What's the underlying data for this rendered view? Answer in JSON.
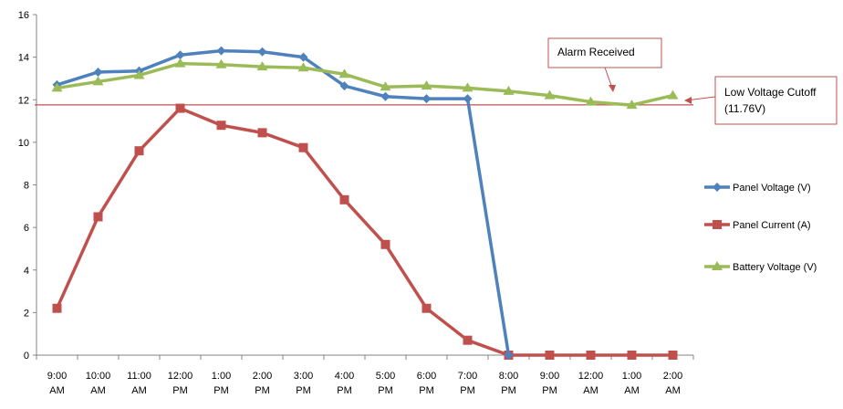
{
  "chart_data": {
    "type": "line",
    "categories": [
      "9:00 AM",
      "10:00 AM",
      "11:00 AM",
      "12:00 PM",
      "1:00 PM",
      "2:00 PM",
      "3:00 PM",
      "4:00 PM",
      "5:00 PM",
      "6:00 PM",
      "7:00 PM",
      "8:00 PM",
      "9:00 PM",
      "12:00 AM",
      "1:00 AM",
      "2:00 AM"
    ],
    "category_lines": [
      [
        "9:00",
        "AM"
      ],
      [
        "10:00",
        "AM"
      ],
      [
        "11:00",
        "AM"
      ],
      [
        "12:00",
        "PM"
      ],
      [
        "1:00",
        "PM"
      ],
      [
        "2:00",
        "PM"
      ],
      [
        "3:00",
        "PM"
      ],
      [
        "4:00",
        "PM"
      ],
      [
        "5:00",
        "PM"
      ],
      [
        "6:00",
        "PM"
      ],
      [
        "7:00",
        "PM"
      ],
      [
        "8:00",
        "PM"
      ],
      [
        "9:00",
        "PM"
      ],
      [
        "12:00",
        "AM"
      ],
      [
        "1:00",
        "AM"
      ],
      [
        "2:00",
        "AM"
      ]
    ],
    "ylim": [
      0,
      16
    ],
    "yticks": [
      0,
      2,
      4,
      6,
      8,
      10,
      12,
      14,
      16
    ],
    "grid": false,
    "legend_position": "right",
    "series": [
      {
        "name": "Panel Voltage  (V)",
        "color": "#4f81bd",
        "marker": "diamond",
        "values": [
          12.7,
          13.3,
          13.35,
          14.1,
          14.3,
          14.25,
          14.0,
          12.65,
          12.15,
          12.05,
          12.05,
          0,
          null,
          null,
          null,
          null
        ]
      },
      {
        "name": "Panel Current (A)",
        "color": "#c0504d",
        "marker": "square",
        "values": [
          2.2,
          6.5,
          9.6,
          11.6,
          10.8,
          10.45,
          9.75,
          7.3,
          5.2,
          2.2,
          0.7,
          0,
          0,
          0,
          0,
          0
        ]
      },
      {
        "name": "Battery Voltage  (V)",
        "color": "#9bbb59",
        "marker": "triangle",
        "values": [
          12.55,
          12.85,
          13.15,
          13.7,
          13.65,
          13.55,
          13.5,
          13.2,
          12.6,
          12.65,
          12.55,
          12.4,
          12.2,
          11.9,
          11.75,
          12.2
        ]
      }
    ],
    "reference_line": {
      "value": 11.76,
      "color": "#c0504d"
    },
    "annotations": {
      "alarm": "Alarm Received",
      "cutoff_line1": "Low Voltage Cutoff",
      "cutoff_line2": "(11.76V)"
    }
  }
}
